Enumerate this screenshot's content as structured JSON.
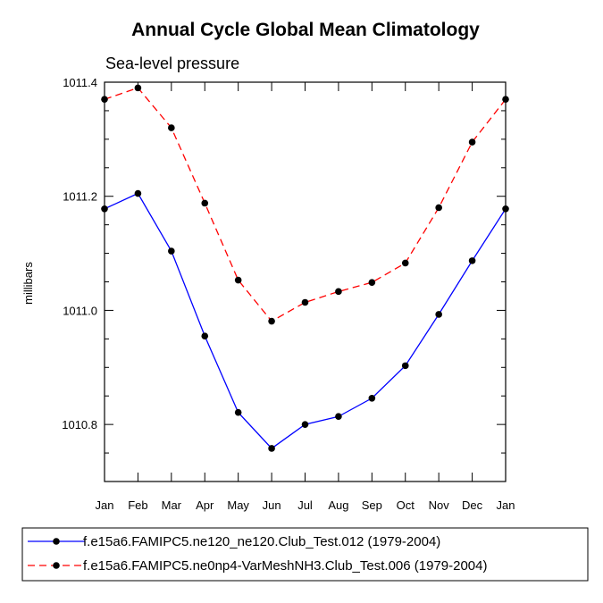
{
  "chart_data": {
    "type": "line",
    "title": "Annual Cycle Global Mean Climatology",
    "subtitle": "Sea-level pressure",
    "xlabel": "",
    "ylabel": "millibars",
    "categories": [
      "Jan",
      "Feb",
      "Mar",
      "Apr",
      "May",
      "Jun",
      "Jul",
      "Aug",
      "Sep",
      "Oct",
      "Nov",
      "Dec",
      "Jan"
    ],
    "ylim": [
      1010.7,
      1011.4
    ],
    "yticks": [
      1010.8,
      1011.0,
      1011.2,
      1011.4
    ],
    "ytick_labels": [
      "1010.8",
      "1011.0",
      "1011.2",
      "1011.4"
    ],
    "grid": false,
    "legend_position": "bottom",
    "series": [
      {
        "name": "f.e15a6.FAMIPC5.ne120_ne120.Club_Test.012 (1979-2004)",
        "color": "#0000ff",
        "dash": "solid",
        "values": [
          1011.178,
          1011.205,
          1011.104,
          1010.955,
          1010.821,
          1010.758,
          1010.8,
          1010.814,
          1010.846,
          1010.903,
          1010.993,
          1011.087,
          1011.178
        ]
      },
      {
        "name": "f.e15a6.FAMIPC5.ne0np4-VarMeshNH3.Club_Test.006 (1979-2004)",
        "color": "#ff0000",
        "dash": "dashed",
        "values": [
          1011.37,
          1011.39,
          1011.32,
          1011.188,
          1011.053,
          1010.981,
          1011.014,
          1011.033,
          1011.049,
          1011.083,
          1011.18,
          1011.295,
          1011.37
        ]
      }
    ]
  }
}
